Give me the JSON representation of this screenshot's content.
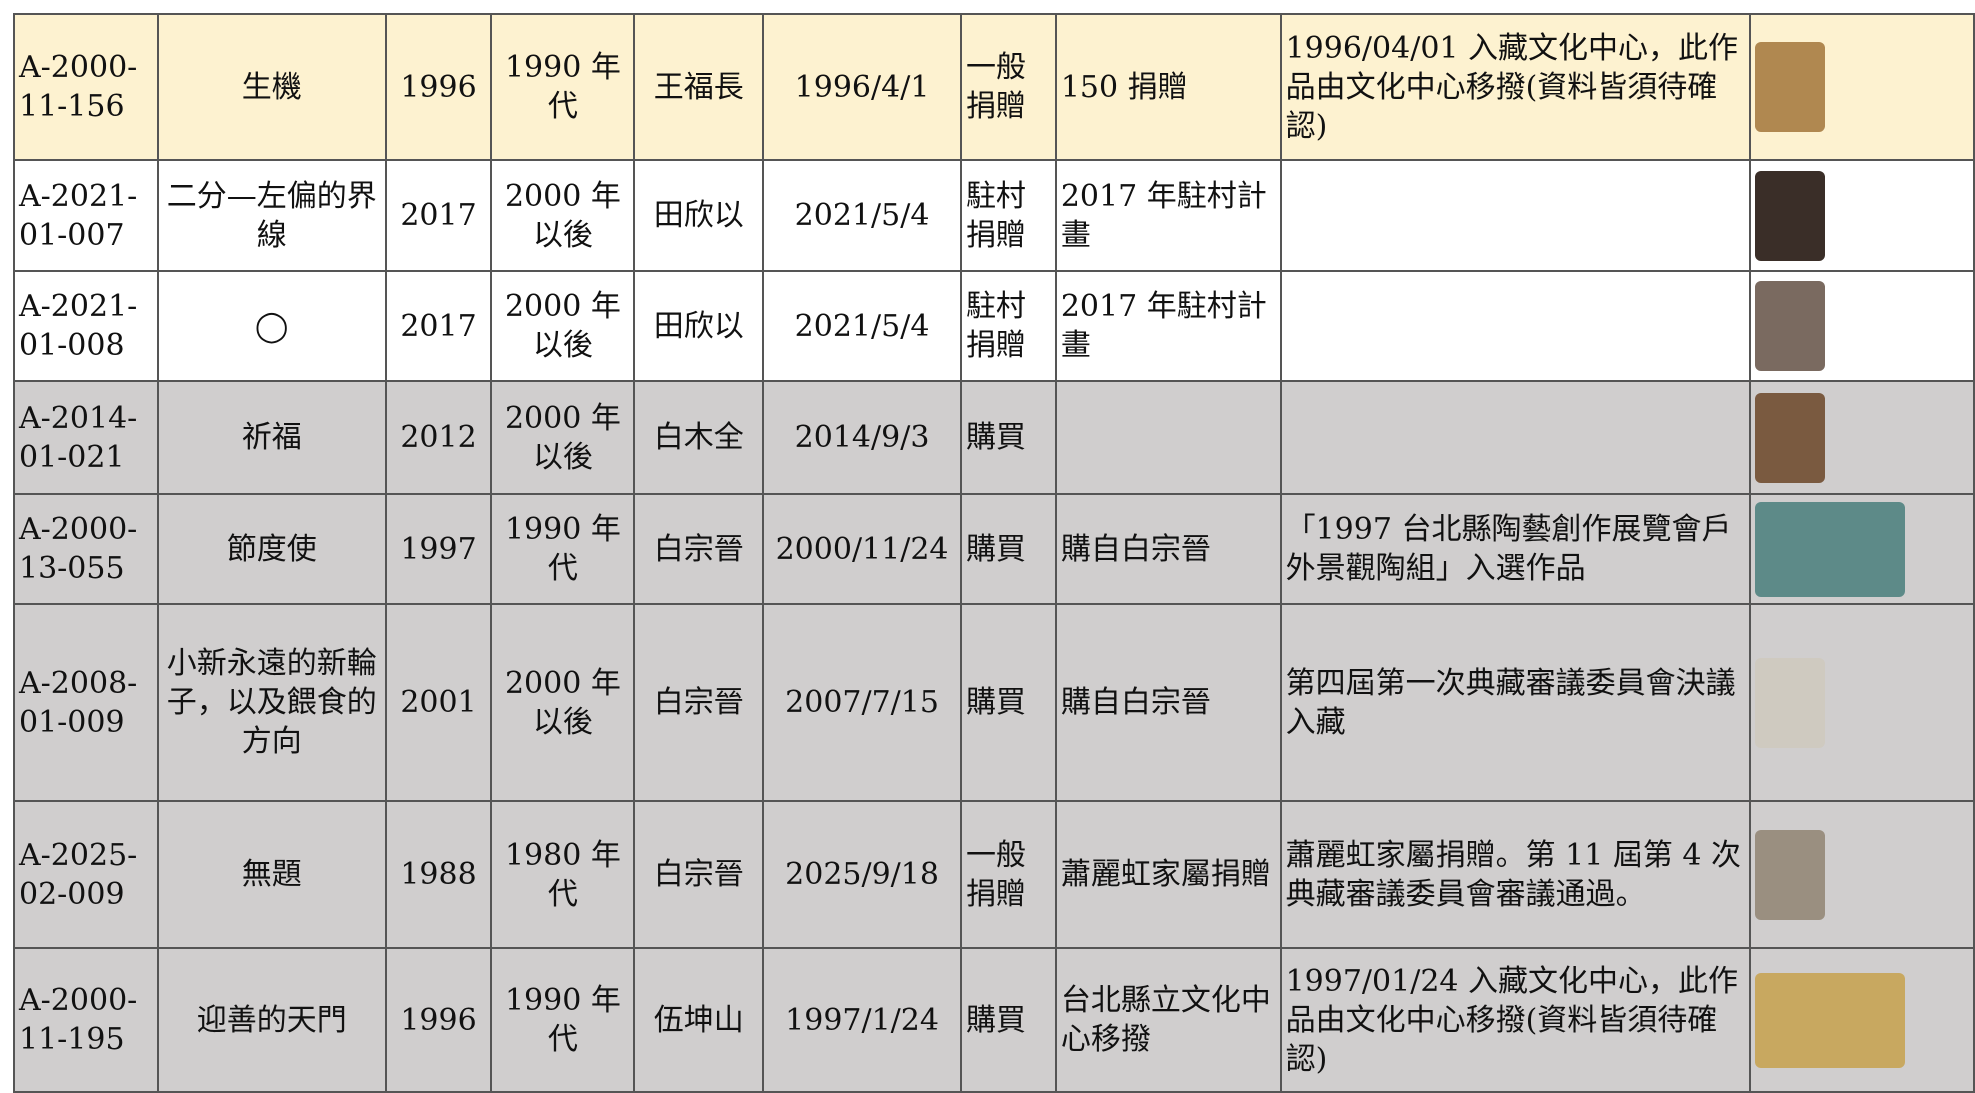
{
  "table": {
    "rows": [
      [
        "A-2000-11-156",
        "生機",
        "1996",
        "1990 年代",
        "王福長",
        "1996/4/1",
        "一般捐贈",
        "150 捐贈",
        "1996/04/01 入藏文化中心，此作品由文化中心移撥(資料皆須待確認)"
      ],
      [
        "A-2021-01-007",
        "二分—左偏的界線",
        "2017",
        "2000 年以後",
        "田欣以",
        "2021/5/4",
        "駐村捐贈",
        "2017 年駐村計畫",
        null
      ],
      [
        "A-2021-01-008",
        "◯",
        "2017",
        "2000 年以後",
        "田欣以",
        "2021/5/4",
        "駐村捐贈",
        "2017 年駐村計畫",
        null
      ],
      [
        "A-2014-01-021",
        "祈福",
        "2012",
        "2000 年以後",
        "白木全",
        "2014/9/3",
        "購買",
        null,
        null
      ],
      [
        "A-2000-13-055",
        "節度使",
        "1997",
        "1990 年代",
        "白宗晉",
        "2000/11/24",
        "購買",
        "購自白宗晉",
        "「1997 台北縣陶藝創作展覽會戶外景觀陶組」入選作品"
      ],
      [
        "A-2008-01-009",
        "小新永遠的新輪子，以及餵食的方向",
        "2001",
        "2000 年以後",
        "白宗晉",
        "2007/7/15",
        "購買",
        "購自白宗晉",
        "第四屆第一次典藏審議委員會決議入藏"
      ],
      [
        "A-2025-02-009",
        "無題",
        "1988",
        "1980 年代",
        "白宗晉",
        "2025/9/18",
        "一般捐贈",
        "蕭麗虹家屬捐贈",
        "蕭麗虹家屬捐贈。第 11 屆第 4 次典藏審議委員會審議通過。"
      ],
      [
        "A-2000-11-195",
        "迎善的天門",
        "1996",
        "1990 年代",
        "伍坤山",
        "1997/1/24",
        "購買",
        "台北縣立文化中心移撥",
        "1997/01/24 入藏文化中心，此作品由文化中心移撥(資料皆須待確認)"
      ]
    ]
  }
}
